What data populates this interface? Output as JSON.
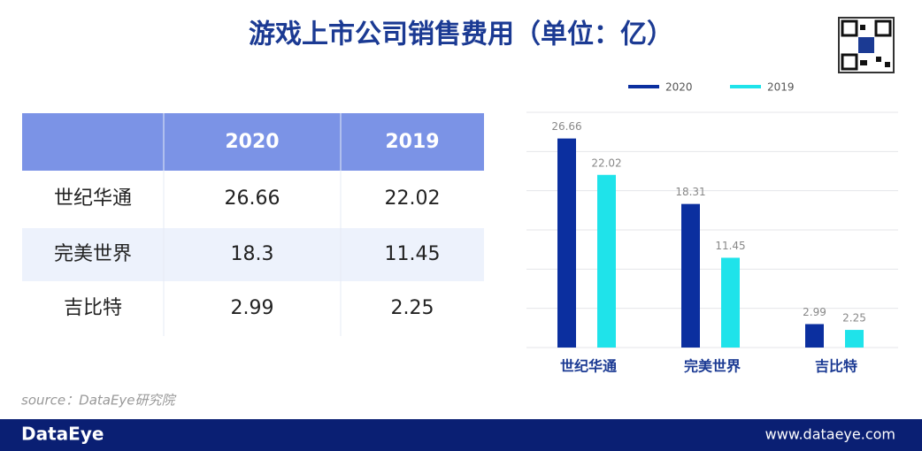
{
  "title": "游戏上市公司销售费用（单位：亿）",
  "table": {
    "columns": [
      "2020",
      "2019"
    ],
    "rows": [
      [
        "世纪华通",
        "26.66",
        "22.02"
      ],
      [
        "完美世界",
        "18.3",
        "11.45"
      ],
      [
        "吉比特",
        "2.99",
        "2.25"
      ]
    ]
  },
  "source": "source：DataEye研究院",
  "footer": {
    "brand": "DataEye",
    "url": "www.dataeye.com"
  },
  "chart_data": {
    "type": "bar",
    "categories": [
      "世纪华通",
      "完美世界",
      "吉比特"
    ],
    "series": [
      {
        "name": "2020",
        "color": "#0b2f9f",
        "values": [
          26.66,
          18.31,
          2.99
        ]
      },
      {
        "name": "2019",
        "color": "#1fe3ea",
        "values": [
          22.02,
          11.45,
          2.25
        ]
      }
    ],
    "ylim": [
      0,
      30
    ],
    "yticks": [
      0,
      5,
      10,
      15,
      20,
      25,
      30
    ],
    "grid": true,
    "legend": "top"
  }
}
